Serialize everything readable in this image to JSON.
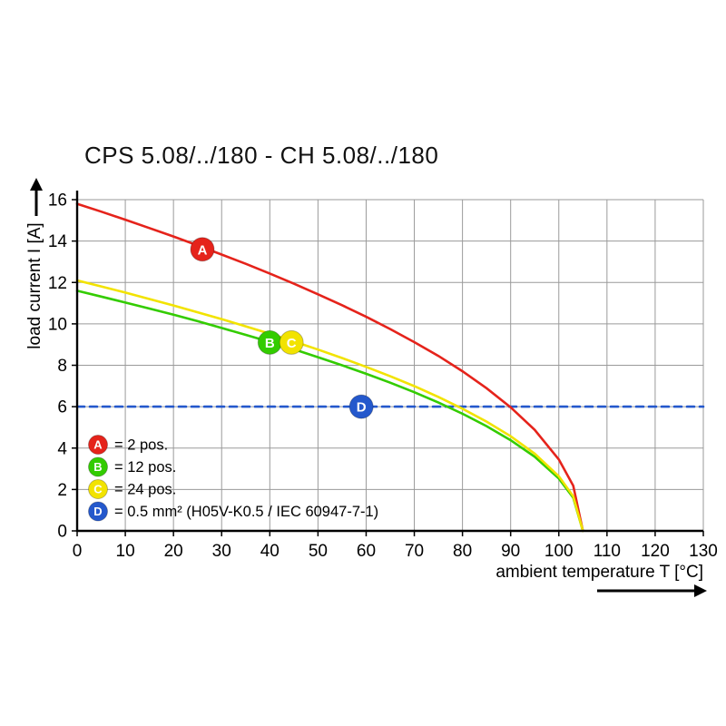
{
  "title": "CPS 5.08/../180 - CH 5.08/../180",
  "chart_data": {
    "type": "line",
    "title": "CPS 5.08/../180 - CH 5.08/../180",
    "xlabel": "ambient temperature T [°C]",
    "ylabel": "load current I [A]",
    "xlim": [
      0,
      130
    ],
    "ylim": [
      0,
      16
    ],
    "x_ticks": [
      0,
      10,
      20,
      30,
      40,
      50,
      60,
      70,
      80,
      90,
      100,
      110,
      120,
      130
    ],
    "y_ticks": [
      0,
      2,
      4,
      6,
      8,
      10,
      12,
      14,
      16
    ],
    "grid": true,
    "grid_color": "#9a9a9a",
    "axis_color": "#000000",
    "legend_position": "bottom-left-inside",
    "series": [
      {
        "name": "A",
        "legend": "= 2 pos.",
        "color": "#e5231b",
        "dashed": false,
        "marker": {
          "x": 26,
          "y": 13.6
        },
        "points": [
          [
            0,
            15.8
          ],
          [
            5,
            15.42
          ],
          [
            10,
            15.03
          ],
          [
            15,
            14.63
          ],
          [
            20,
            14.22
          ],
          [
            25,
            13.79
          ],
          [
            30,
            13.35
          ],
          [
            35,
            12.9
          ],
          [
            40,
            12.43
          ],
          [
            45,
            11.94
          ],
          [
            50,
            11.43
          ],
          [
            55,
            10.9
          ],
          [
            60,
            10.34
          ],
          [
            65,
            9.75
          ],
          [
            70,
            9.12
          ],
          [
            75,
            8.45
          ],
          [
            80,
            7.71
          ],
          [
            85,
            6.89
          ],
          [
            90,
            5.97
          ],
          [
            95,
            4.88
          ],
          [
            100,
            3.45
          ],
          [
            103,
            2.18
          ],
          [
            105,
            0
          ]
        ]
      },
      {
        "name": "B",
        "legend": "= 12 pos.",
        "color": "#33cc00",
        "dashed": false,
        "marker": {
          "x": 40,
          "y": 9.1
        },
        "points": [
          [
            0,
            11.6
          ],
          [
            5,
            11.32
          ],
          [
            10,
            11.03
          ],
          [
            15,
            10.74
          ],
          [
            20,
            10.44
          ],
          [
            25,
            10.13
          ],
          [
            30,
            9.8
          ],
          [
            35,
            9.47
          ],
          [
            40,
            9.13
          ],
          [
            45,
            8.77
          ],
          [
            50,
            8.39
          ],
          [
            55,
            8.0
          ],
          [
            60,
            7.59
          ],
          [
            65,
            7.16
          ],
          [
            70,
            6.7
          ],
          [
            75,
            6.2
          ],
          [
            80,
            5.66
          ],
          [
            85,
            5.06
          ],
          [
            90,
            4.38
          ],
          [
            95,
            3.58
          ],
          [
            100,
            2.53
          ],
          [
            103,
            1.6
          ],
          [
            105,
            0
          ]
        ]
      },
      {
        "name": "C",
        "legend": "= 24 pos.",
        "color": "#f2e300",
        "dashed": false,
        "marker": {
          "x": 44.5,
          "y": 9.1
        },
        "points": [
          [
            0,
            12.1
          ],
          [
            5,
            11.81
          ],
          [
            10,
            11.51
          ],
          [
            15,
            11.2
          ],
          [
            20,
            10.89
          ],
          [
            25,
            10.56
          ],
          [
            30,
            10.23
          ],
          [
            35,
            9.88
          ],
          [
            40,
            9.52
          ],
          [
            45,
            9.15
          ],
          [
            50,
            8.76
          ],
          [
            55,
            8.35
          ],
          [
            60,
            7.92
          ],
          [
            65,
            7.47
          ],
          [
            70,
            6.99
          ],
          [
            75,
            6.47
          ],
          [
            80,
            5.9
          ],
          [
            85,
            5.28
          ],
          [
            90,
            4.57
          ],
          [
            95,
            3.73
          ],
          [
            100,
            2.64
          ],
          [
            103,
            1.67
          ],
          [
            105,
            0
          ]
        ]
      },
      {
        "name": "D",
        "legend": "= 0.5 mm² (H05V-K0.5 / IEC 60947-7-1)",
        "color": "#2458cc",
        "dashed": true,
        "marker": {
          "x": 59,
          "y": 6
        },
        "points": [
          [
            0,
            6
          ],
          [
            130,
            6
          ]
        ]
      }
    ]
  }
}
